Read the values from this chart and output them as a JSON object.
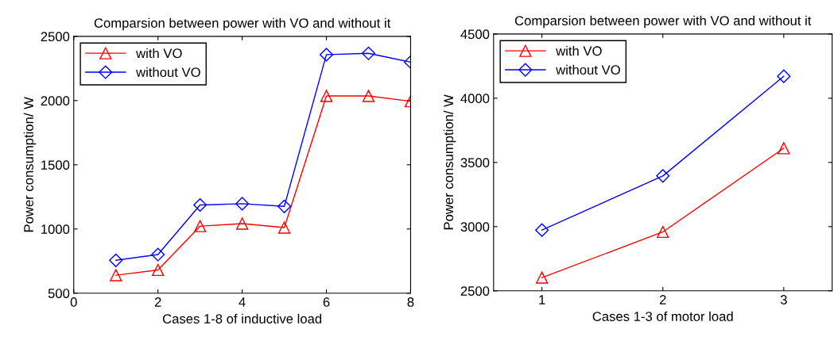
{
  "chart_data": [
    {
      "type": "line",
      "title": "Comparsion between power with VO and without it",
      "xlabel": "Cases 1-8 of inductive load",
      "ylabel": "Power consumption/ W",
      "x": [
        1,
        2,
        3,
        4,
        5,
        6,
        7,
        8
      ],
      "series": [
        {
          "name": "with VO",
          "color": "#ff0000",
          "marker": "triangle",
          "values": [
            640,
            681,
            1022,
            1042,
            1011,
            2036,
            2036,
            1995
          ]
        },
        {
          "name": "without VO",
          "color": "#0000ff",
          "marker": "diamond",
          "values": [
            756,
            801,
            1187,
            1197,
            1176,
            2358,
            2368,
            2300
          ]
        }
      ],
      "xlim": [
        0,
        8
      ],
      "xticks": [
        0,
        2,
        4,
        6,
        8
      ],
      "ylim": [
        500,
        2500
      ],
      "yticks": [
        500,
        1000,
        1500,
        2000,
        2500
      ],
      "legend": "top left",
      "grid": false,
      "line_style": "solid"
    },
    {
      "type": "line",
      "title": "Comparsion between power with VO and without it",
      "xlabel": "Cases 1-3 of motor load",
      "ylabel": "Power consumption/ W",
      "x": [
        1,
        2,
        3
      ],
      "series": [
        {
          "name": "with VO",
          "color": "#ff0000",
          "marker": "triangle",
          "values": [
            2603,
            2959,
            3611
          ]
        },
        {
          "name": "without VO",
          "color": "#0000ff",
          "marker": "diamond",
          "values": [
            2973,
            3395,
            4171
          ]
        }
      ],
      "xlim": [
        0.6,
        3.4
      ],
      "xticks": [
        1,
        2,
        3
      ],
      "ylim": [
        2500,
        4500
      ],
      "yticks": [
        2500,
        3000,
        3500,
        4000,
        4500
      ],
      "legend": "top left",
      "grid": false,
      "line_style": "solid"
    }
  ]
}
